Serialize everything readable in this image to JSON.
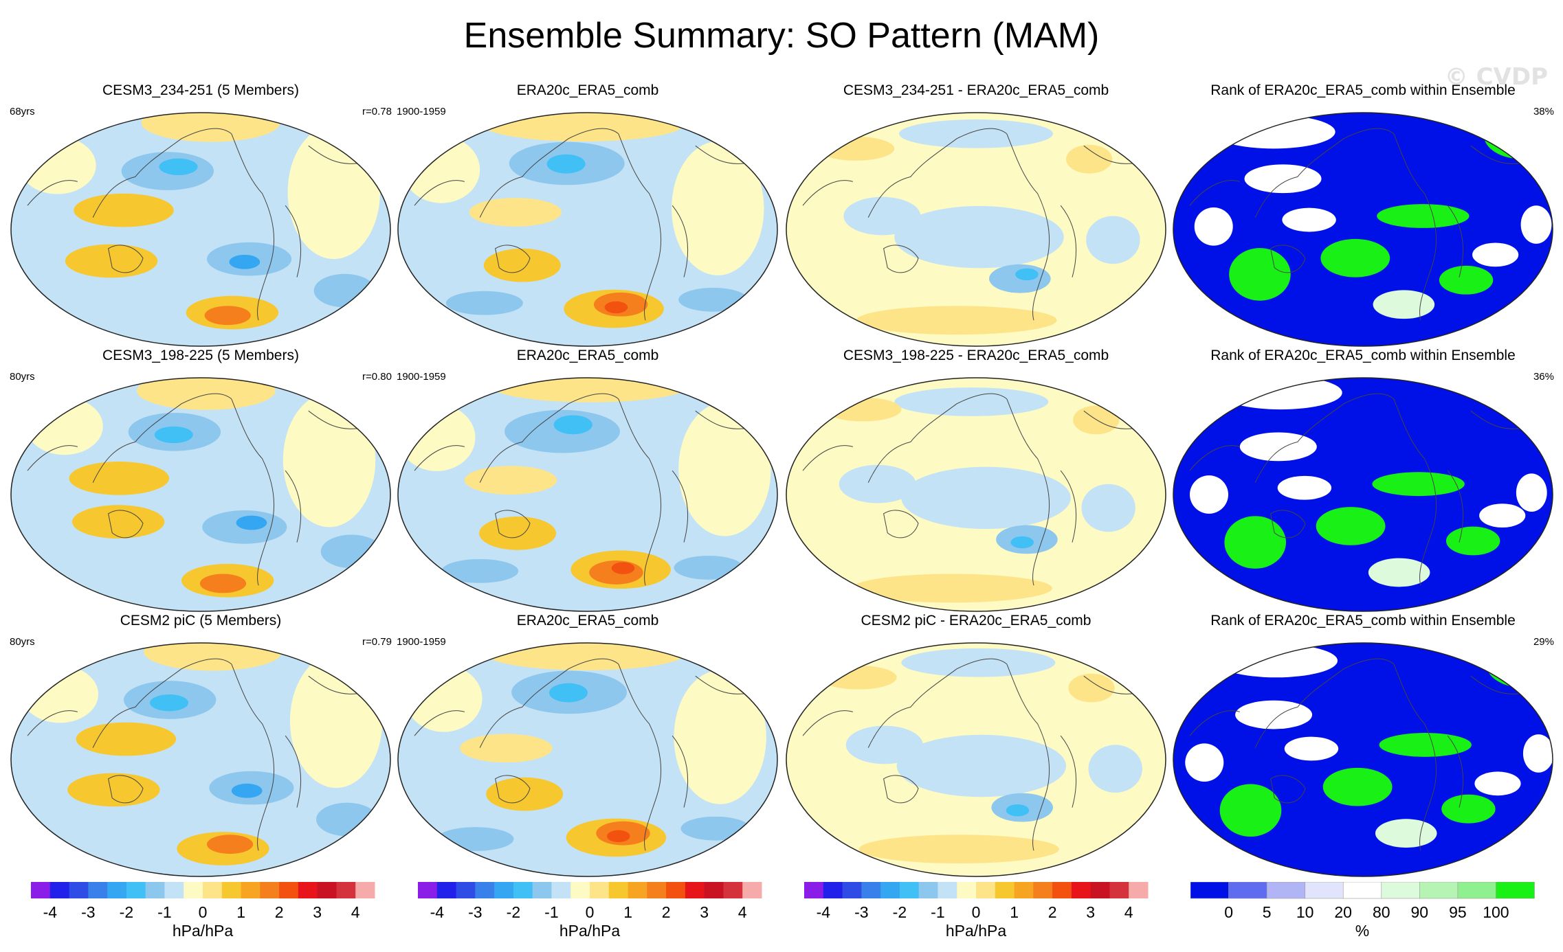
{
  "title": "Ensemble Summary: SO Pattern (MAM)",
  "watermark": "© CVDP",
  "colors": {
    "diverging": [
      "#8a1ee8",
      "#2121ea",
      "#2f4ce6",
      "#3a80ea",
      "#35a6f1",
      "#40c0f5",
      "#8ec7ee",
      "#c4e2f5",
      "#fdfac4",
      "#fde488",
      "#f7c730",
      "#f7a423",
      "#f57e1d",
      "#f3510f",
      "#e8141c",
      "#c91222",
      "#d4333b",
      "#f6abab"
    ],
    "rank": [
      "#0011e8",
      "#5f6cf0",
      "#b1b4f5",
      "#e2e4fb",
      "#ffffff",
      "#ddfadd",
      "#b6f4b4",
      "#8ff08f",
      "#19f015"
    ]
  },
  "rows": [
    {
      "panels": [
        {
          "title": "CESM3_234-251 (5 Members)",
          "left": "68yrs",
          "right": "r=0.78",
          "kind": "model"
        },
        {
          "title": "ERA20c_ERA5_comb",
          "left": "1900-1959",
          "right": "",
          "kind": "obs"
        },
        {
          "title": "CESM3_234-251 - ERA20c_ERA5_comb",
          "left": "",
          "right": "",
          "kind": "diff"
        },
        {
          "title": "Rank of ERA20c_ERA5_comb within Ensemble",
          "left": "",
          "right": "38%",
          "kind": "rank"
        }
      ]
    },
    {
      "panels": [
        {
          "title": "CESM3_198-225 (5 Members)",
          "left": "80yrs",
          "right": "r=0.80",
          "kind": "model"
        },
        {
          "title": "ERA20c_ERA5_comb",
          "left": "1900-1959",
          "right": "",
          "kind": "obs"
        },
        {
          "title": "CESM3_198-225 - ERA20c_ERA5_comb",
          "left": "",
          "right": "",
          "kind": "diff"
        },
        {
          "title": "Rank of ERA20c_ERA5_comb within Ensemble",
          "left": "",
          "right": "36%",
          "kind": "rank"
        }
      ]
    },
    {
      "panels": [
        {
          "title": "CESM2 piC (5 Members)",
          "left": "80yrs",
          "right": "r=0.79",
          "kind": "model"
        },
        {
          "title": "ERA20c_ERA5_comb",
          "left": "1900-1959",
          "right": "",
          "kind": "obs"
        },
        {
          "title": "CESM2 piC - ERA20c_ERA5_comb",
          "left": "",
          "right": "",
          "kind": "diff"
        },
        {
          "title": "Rank of ERA20c_ERA5_comb within Ensemble",
          "left": "",
          "right": "29%",
          "kind": "rank"
        }
      ]
    }
  ],
  "colorbars": [
    {
      "label": "hPa/hPa",
      "ticks": [
        "-4",
        "-3",
        "-2",
        "-1",
        "0",
        "1",
        "2",
        "3",
        "4"
      ],
      "type": "diverging"
    },
    {
      "label": "hPa/hPa",
      "ticks": [
        "-4",
        "-3",
        "-2",
        "-1",
        "0",
        "1",
        "2",
        "3",
        "4"
      ],
      "type": "diverging"
    },
    {
      "label": "hPa/hPa",
      "ticks": [
        "-4",
        "-3",
        "-2",
        "-1",
        "0",
        "1",
        "2",
        "3",
        "4"
      ],
      "type": "diverging"
    },
    {
      "label": "%",
      "ticks": [
        "0",
        "5",
        "10",
        "20",
        "80",
        "90",
        "95",
        "100"
      ],
      "type": "rank"
    }
  ],
  "chart_data": {
    "type": "heatmap",
    "title": "Ensemble Summary: SO Pattern (MAM)",
    "projection": "Robinson-like global map centered on Pacific",
    "variable": "SO pattern regression",
    "units": "hPa/hPa",
    "levels": [
      -4.5,
      -4,
      -3.5,
      -3,
      -2.5,
      -2,
      -1.5,
      -1,
      -0.5,
      0,
      0.5,
      1,
      1.5,
      2,
      2.5,
      3,
      3.5,
      4,
      4.5
    ],
    "rank_levels": [
      0,
      5,
      10,
      20,
      80,
      90,
      95,
      100
    ],
    "rank_units": "%",
    "panels": [
      {
        "row": 1,
        "col": 1,
        "name": "CESM3_234-251 (5 Members)",
        "period": "68yrs",
        "pattern_correlation": 0.78
      },
      {
        "row": 1,
        "col": 2,
        "name": "ERA20c_ERA5_comb",
        "period": "1900-1959"
      },
      {
        "row": 1,
        "col": 3,
        "name": "CESM3_234-251 - ERA20c_ERA5_comb"
      },
      {
        "row": 1,
        "col": 4,
        "name": "Rank of ERA20c_ERA5_comb within Ensemble",
        "percent": 38
      },
      {
        "row": 2,
        "col": 1,
        "name": "CESM3_198-225 (5 Members)",
        "period": "80yrs",
        "pattern_correlation": 0.8
      },
      {
        "row": 2,
        "col": 2,
        "name": "ERA20c_ERA5_comb",
        "period": "1900-1959"
      },
      {
        "row": 2,
        "col": 3,
        "name": "CESM3_198-225 - ERA20c_ERA5_comb"
      },
      {
        "row": 2,
        "col": 4,
        "name": "Rank of ERA20c_ERA5_comb within Ensemble",
        "percent": 36
      },
      {
        "row": 3,
        "col": 1,
        "name": "CESM2 piC (5 Members)",
        "period": "80yrs",
        "pattern_correlation": 0.79
      },
      {
        "row": 3,
        "col": 2,
        "name": "ERA20c_ERA5_comb",
        "period": "1900-1959"
      },
      {
        "row": 3,
        "col": 3,
        "name": "CESM2 piC - ERA20c_ERA5_comb"
      },
      {
        "row": 3,
        "col": 4,
        "name": "Rank of ERA20c_ERA5_comb within Ensemble",
        "percent": 29
      }
    ]
  }
}
